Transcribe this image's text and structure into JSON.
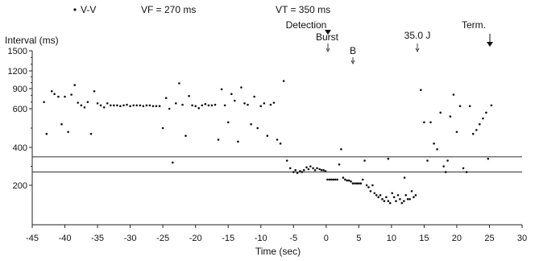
{
  "chart_data": {
    "type": "scatter",
    "legend_label": "V-V",
    "vf_label": "VF = 270 ms",
    "vt_label": "VT = 350 ms",
    "ylabel": "Interval (ms)",
    "xlabel": "Time (sec)",
    "xlim": [
      -45,
      30
    ],
    "ylim": [
      0,
      1500
    ],
    "y_scale": "log-like (reciprocal)",
    "x_ticks": [
      -45,
      -40,
      -35,
      -30,
      -25,
      -20,
      -15,
      -10,
      -5,
      0,
      5,
      10,
      15,
      20,
      25,
      30
    ],
    "y_ticks": [
      200,
      400,
      600,
      900,
      1200,
      1500
    ],
    "reference_lines": [
      {
        "name": "VT",
        "y": 350
      },
      {
        "name": "VF",
        "y": 270
      }
    ],
    "annotations": [
      {
        "text": "Detection",
        "x": 0.2
      },
      {
        "text": "Burst",
        "x": 0.2
      },
      {
        "text": "B",
        "x": 4
      },
      {
        "text": "35.0 J",
        "x": 14
      },
      {
        "text": "Term.",
        "x": 25
      }
    ],
    "colors": {
      "points": "#111111",
      "axes": "#222222",
      "lines": "#333333"
    },
    "points": [
      [
        -43.2,
        700
      ],
      [
        -42.8,
        470
      ],
      [
        -42.0,
        860
      ],
      [
        -41.6,
        820
      ],
      [
        -41.0,
        780
      ],
      [
        -40.5,
        520
      ],
      [
        -40.0,
        780
      ],
      [
        -39.5,
        480
      ],
      [
        -39.0,
        810
      ],
      [
        -38.5,
        960
      ],
      [
        -38.0,
        690
      ],
      [
        -37.5,
        650
      ],
      [
        -37.0,
        620
      ],
      [
        -36.5,
        700
      ],
      [
        -36.0,
        470
      ],
      [
        -35.5,
        860
      ],
      [
        -35.0,
        680
      ],
      [
        -34.5,
        650
      ],
      [
        -34.0,
        620
      ],
      [
        -33.5,
        680
      ],
      [
        -33.0,
        650
      ],
      [
        -32.5,
        650
      ],
      [
        -32.0,
        650
      ],
      [
        -31.5,
        640
      ],
      [
        -31.0,
        650
      ],
      [
        -30.5,
        660
      ],
      [
        -30.0,
        640
      ],
      [
        -29.5,
        650
      ],
      [
        -29.0,
        650
      ],
      [
        -28.5,
        650
      ],
      [
        -28.0,
        640
      ],
      [
        -27.5,
        650
      ],
      [
        -27.0,
        650
      ],
      [
        -26.5,
        640
      ],
      [
        -26.0,
        640
      ],
      [
        -25.5,
        640
      ],
      [
        -25.0,
        500
      ],
      [
        -24.5,
        760
      ],
      [
        -24.0,
        600
      ],
      [
        -23.5,
        320
      ],
      [
        -23.0,
        680
      ],
      [
        -22.5,
        990
      ],
      [
        -22.0,
        660
      ],
      [
        -21.5,
        460
      ],
      [
        -21.0,
        790
      ],
      [
        -20.5,
        650
      ],
      [
        -20.0,
        640
      ],
      [
        -19.5,
        610
      ],
      [
        -19.0,
        650
      ],
      [
        -18.5,
        670
      ],
      [
        -18.0,
        650
      ],
      [
        -17.5,
        650
      ],
      [
        -17.0,
        660
      ],
      [
        -16.5,
        440
      ],
      [
        -16.0,
        890
      ],
      [
        -15.5,
        650
      ],
      [
        -15.0,
        530
      ],
      [
        -14.5,
        820
      ],
      [
        -14.0,
        720
      ],
      [
        -13.5,
        430
      ],
      [
        -13.0,
        920
      ],
      [
        -12.5,
        680
      ],
      [
        -12.0,
        660
      ],
      [
        -11.5,
        520
      ],
      [
        -11.0,
        780
      ],
      [
        -10.5,
        500
      ],
      [
        -10.0,
        640
      ],
      [
        -9.5,
        680
      ],
      [
        -9.0,
        460
      ],
      [
        -8.5,
        660
      ],
      [
        -8.0,
        690
      ],
      [
        -7.5,
        440
      ],
      [
        -7.0,
        420
      ],
      [
        -6.5,
        1030
      ],
      [
        -6.0,
        330
      ],
      [
        -5.5,
        290
      ],
      [
        -5.0,
        270
      ],
      [
        -4.7,
        280
      ],
      [
        -4.4,
        265
      ],
      [
        -4.0,
        275
      ],
      [
        -3.7,
        270
      ],
      [
        -3.4,
        280
      ],
      [
        -3.0,
        295
      ],
      [
        -2.7,
        285
      ],
      [
        -2.4,
        300
      ],
      [
        -2.0,
        290
      ],
      [
        -1.7,
        280
      ],
      [
        -1.4,
        290
      ],
      [
        -1.0,
        285
      ],
      [
        -0.7,
        280
      ],
      [
        -0.4,
        280
      ],
      [
        -0.1,
        275
      ],
      [
        0.2,
        230
      ],
      [
        0.5,
        230
      ],
      [
        0.8,
        230
      ],
      [
        1.1,
        230
      ],
      [
        1.4,
        230
      ],
      [
        1.7,
        230
      ],
      [
        2.0,
        310
      ],
      [
        2.3,
        390
      ],
      [
        2.6,
        240
      ],
      [
        2.9,
        230
      ],
      [
        3.2,
        225
      ],
      [
        3.5,
        225
      ],
      [
        3.8,
        220
      ],
      [
        4.1,
        210
      ],
      [
        4.4,
        210
      ],
      [
        4.7,
        210
      ],
      [
        5.0,
        210
      ],
      [
        5.3,
        210
      ],
      [
        5.6,
        230
      ],
      [
        5.9,
        330
      ],
      [
        6.2,
        200
      ],
      [
        6.5,
        195
      ],
      [
        6.8,
        185
      ],
      [
        7.1,
        200
      ],
      [
        7.4,
        180
      ],
      [
        7.7,
        175
      ],
      [
        8.0,
        170
      ],
      [
        8.3,
        175
      ],
      [
        8.6,
        165
      ],
      [
        8.9,
        160
      ],
      [
        9.2,
        170
      ],
      [
        9.5,
        160
      ],
      [
        9.8,
        155
      ],
      [
        10.1,
        180
      ],
      [
        10.4,
        170
      ],
      [
        10.7,
        160
      ],
      [
        11.0,
        175
      ],
      [
        11.3,
        165
      ],
      [
        11.6,
        155
      ],
      [
        11.9,
        160
      ],
      [
        12.2,
        175
      ],
      [
        12.5,
        165
      ],
      [
        12.8,
        165
      ],
      [
        13.1,
        185
      ],
      [
        13.4,
        170
      ],
      [
        13.7,
        175
      ],
      [
        9.5,
        340
      ],
      [
        12.0,
        240
      ],
      [
        14.5,
        880
      ],
      [
        15.0,
        530
      ],
      [
        15.5,
        330
      ],
      [
        16.0,
        530
      ],
      [
        16.5,
        420
      ],
      [
        17.0,
        390
      ],
      [
        17.5,
        580
      ],
      [
        18.0,
        300
      ],
      [
        18.3,
        270
      ],
      [
        18.6,
        330
      ],
      [
        19.0,
        560
      ],
      [
        19.5,
        810
      ],
      [
        20.0,
        480
      ],
      [
        20.5,
        640
      ],
      [
        21.0,
        290
      ],
      [
        21.5,
        270
      ],
      [
        22.0,
        640
      ],
      [
        22.5,
        470
      ],
      [
        23.0,
        490
      ],
      [
        23.5,
        520
      ],
      [
        24.0,
        550
      ],
      [
        24.5,
        580
      ],
      [
        24.8,
        340
      ],
      [
        25.3,
        650
      ]
    ]
  }
}
